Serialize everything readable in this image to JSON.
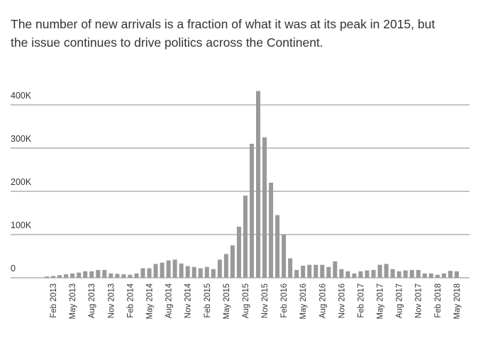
{
  "chart_data": {
    "type": "bar",
    "title": [
      "The number of new arrivals is a fraction of what it was at its peak in 2015, but",
      "the issue continues to drive politics across the Continent."
    ],
    "categories": [
      null,
      "Feb 2013",
      null,
      null,
      "May 2013",
      null,
      null,
      "Aug 2013",
      null,
      null,
      "Nov 2013",
      null,
      null,
      "Feb 2014",
      null,
      null,
      "May 2014",
      null,
      null,
      "Aug 2014",
      null,
      null,
      "Nov 2014",
      null,
      null,
      "Feb 2015",
      null,
      null,
      "May 2015",
      null,
      null,
      "Aug 2015",
      null,
      null,
      "Nov 2015",
      null,
      null,
      "Feb 2016",
      null,
      null,
      "May 2016",
      null,
      null,
      "Aug 2016",
      null,
      null,
      "Nov 2016",
      null,
      null,
      "Feb 2017",
      null,
      null,
      "May 2017",
      null,
      null,
      "Aug 2017",
      null,
      null,
      "Nov 2017",
      null,
      null,
      "Feb 2018",
      null,
      null,
      "May 2018"
    ],
    "values": [
      3000,
      4000,
      6000,
      8000,
      10000,
      12000,
      15000,
      15000,
      18000,
      18000,
      10000,
      9000,
      8000,
      7000,
      10000,
      22000,
      22000,
      32000,
      35000,
      40000,
      42000,
      33000,
      27000,
      25000,
      22000,
      25000,
      20000,
      42000,
      55000,
      75000,
      118000,
      190000,
      310000,
      432000,
      325000,
      220000,
      145000,
      100000,
      45000,
      18000,
      28000,
      30000,
      30000,
      30000,
      25000,
      38000,
      20000,
      15000,
      10000,
      15000,
      17000,
      18000,
      30000,
      32000,
      20000,
      15000,
      17000,
      18000,
      18000,
      10000,
      10000,
      7000,
      10000,
      16000,
      15000
    ],
    "color": "#999999",
    "ylim": [
      0,
      450000
    ],
    "yticks": [
      0,
      {
        "value": 100000,
        "label": "100K"
      },
      {
        "value": 200000,
        "label": "200K"
      },
      {
        "value": 300000,
        "label": "300K"
      },
      {
        "value": 400000,
        "label": "400K"
      }
    ],
    "grid": true
  }
}
